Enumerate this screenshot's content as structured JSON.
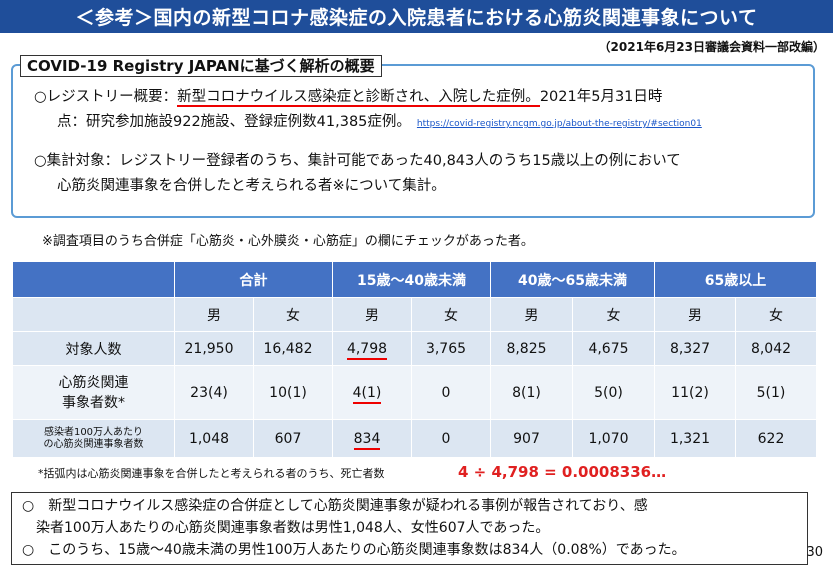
{
  "title": "＜参考＞国内の新型コロナ感染症の入院患者における心筋炎関連事象について",
  "revision": "（2021年6月23日審議会資料一部改編）",
  "box_label": "COVID-19 Registry JAPANに基づく解析の概要",
  "registry": {
    "prefix": "○レジストリー概要：",
    "underlined": "新型コロナウイルス感染症と診断され、入院した症例。",
    "rest1": "2021年5月31日時",
    "line2": "点：研究参加施設922施設、登録症例数41,385症例。",
    "url": "https://covid-registry.ncgm.go.jp/about-the-registry/#section01"
  },
  "target": {
    "line1": "○集計対象：レジストリー登録者のうち、集計可能であった40,843人のうち15歳以上の例において",
    "line2": "心筋炎関連事象を合併したと考えられる者※について集計。"
  },
  "survey_note": "※調査項目のうち合併症「心筋炎・心外膜炎・心筋症」の欄にチェックがあった者。",
  "table": {
    "groups": [
      "合計",
      "15歳〜40歳未満",
      "40歳〜65歳未満",
      "65歳以上"
    ],
    "sexes": [
      "男",
      "女",
      "男",
      "女",
      "男",
      "女",
      "男",
      "女"
    ],
    "rows": [
      {
        "label": "対象人数",
        "values": [
          "21,950",
          "16,482",
          "4,798",
          "3,765",
          "8,825",
          "4,675",
          "8,327",
          "8,042"
        ]
      },
      {
        "label": "心筋炎関連\n事象者数*",
        "values": [
          "23(4)",
          "10(1)",
          "4(1)",
          "0",
          "8(1)",
          "5(0)",
          "11(2)",
          "5(1)"
        ]
      },
      {
        "label": "感染者100万人あたり\nの心筋炎関連事象者数",
        "values": [
          "1,048",
          "607",
          "834",
          "0",
          "907",
          "1,070",
          "1,321",
          "622"
        ]
      }
    ]
  },
  "footnote": "*括弧内は心筋炎関連事象を合併したと考えられる者のうち、死亡者数",
  "calc": "4 ÷ 4,798 = 0.0008336…",
  "summary": {
    "line1": "○　新型コロナウイルス感染症の合併症として心筋炎関連事象が疑われる事例が報告されており、感",
    "line2": "　染者100万人あたりの心筋炎関連事象者数は男性1,048人、女性607人であった。",
    "line3": "○　このうち、15歳〜40歳未満の男性100万人あたりの心筋炎関連事象数は834人（0.08%）であった。"
  },
  "page_number": "30",
  "colors": {
    "header": "#1f4e9a",
    "table_head": "#4472c4",
    "box_border": "#5b9bd5",
    "highlight": "#e00000"
  }
}
